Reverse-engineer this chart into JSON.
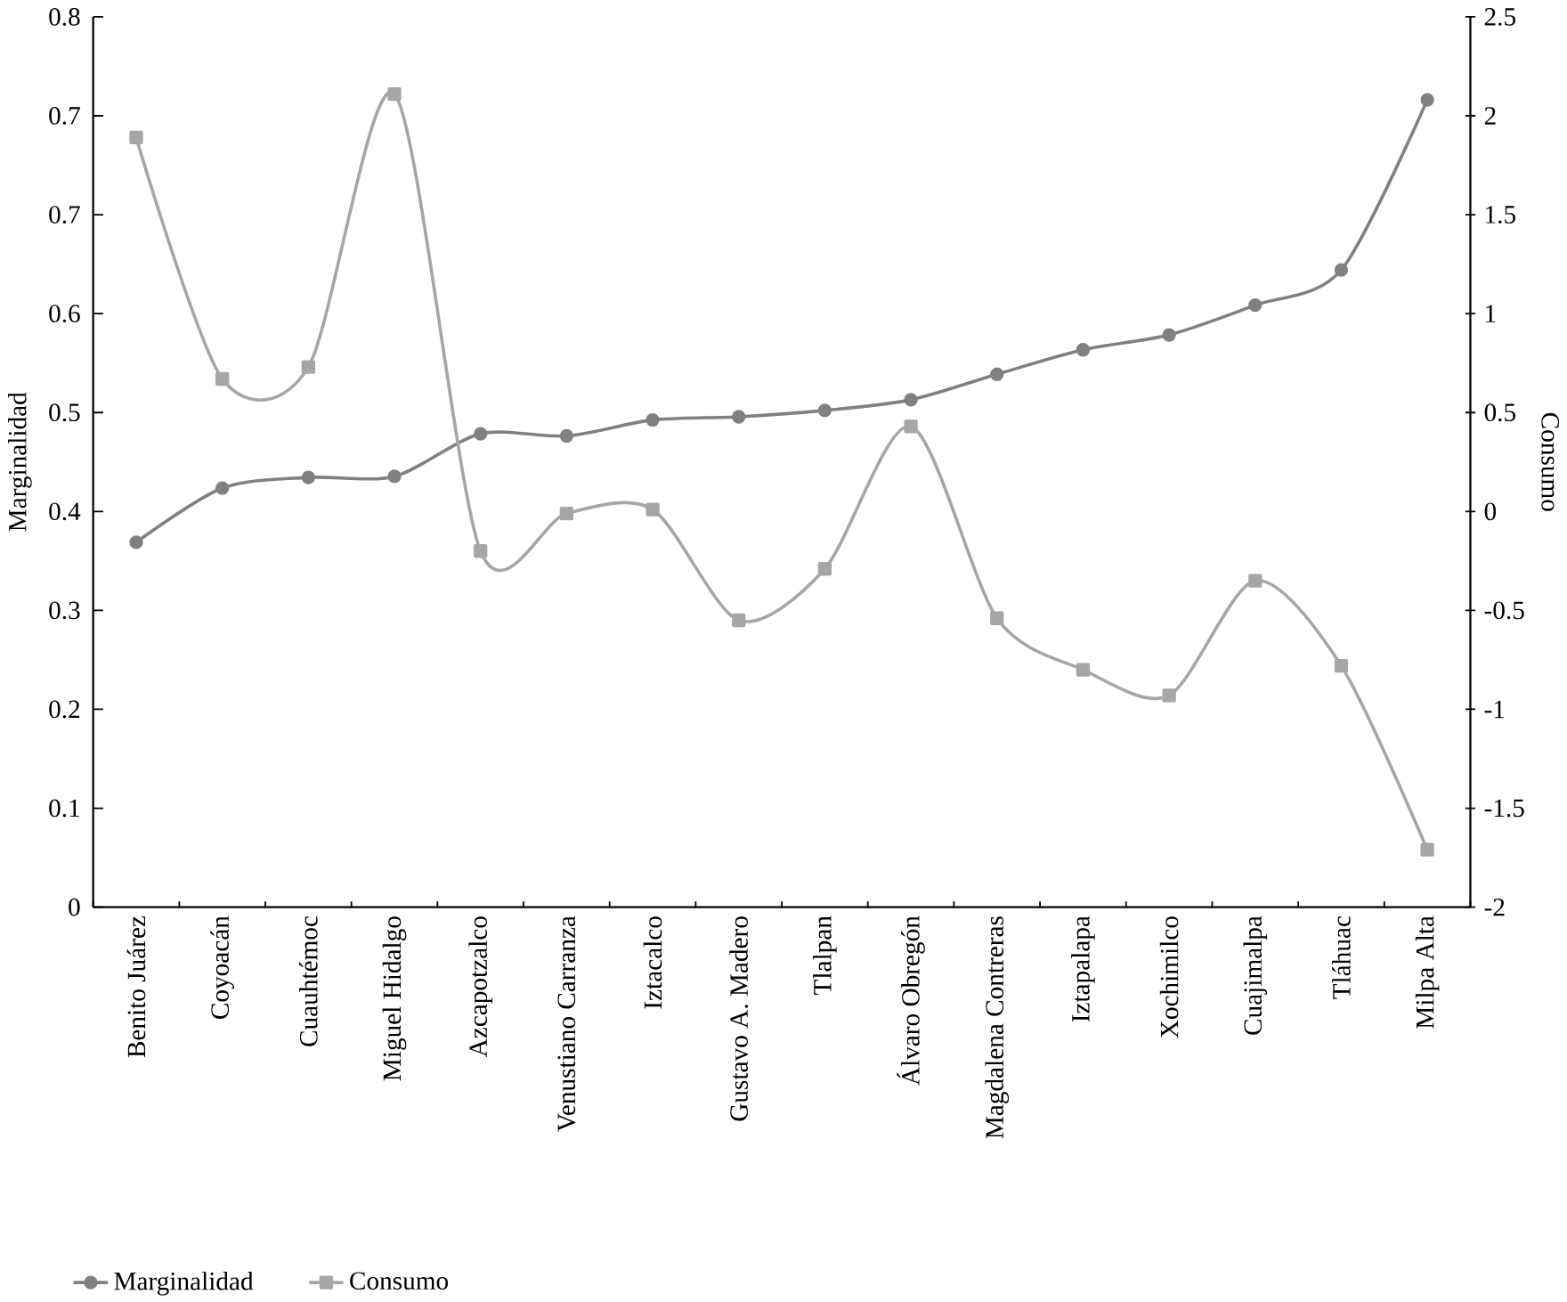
{
  "chart_data": {
    "type": "line",
    "xlabel": null,
    "ylabel": "Marginalidad",
    "y2label": "Consumo",
    "categories": [
      "Benito Juárez",
      "Coyoacán",
      "Cuauhtémoc",
      "Miguel Hidalgo",
      "Azcapotzalco",
      "Venustiano Carranza",
      "Iztacalco",
      "Gustavo A. Madero",
      "Tlalpan",
      "Álvaro Obregón",
      "Magdalena Contreras",
      "Iztapalapa",
      "Xochimilco",
      "Cuajimalpa",
      "Tláhuac",
      "Milpa Alta"
    ],
    "series": [
      {
        "name": "Marginalidad",
        "color": "#808080",
        "marker": "circle",
        "values": [
          0.343,
          0.394,
          0.404,
          0.405,
          0.445,
          0.443,
          0.458,
          0.461,
          0.467,
          0.477,
          0.501,
          0.524,
          0.538,
          0.566,
          0.599,
          0.759
        ]
      },
      {
        "name": "Consumo",
        "color": "#a6a6a6",
        "marker": "square",
        "axis": "y2",
        "values": [
          1.89,
          0.67,
          0.73,
          2.11,
          -0.2,
          -0.01,
          0.01,
          -0.55,
          -0.29,
          0.43,
          -0.54,
          -0.8,
          -0.93,
          -0.35,
          -0.78,
          -1.71
        ]
      }
    ],
    "ylim": [
      0,
      0.837
    ],
    "yticks": [
      {
        "value": 0,
        "label": "0"
      },
      {
        "value": 0.093,
        "label": "0.1"
      },
      {
        "value": 0.186,
        "label": "0.2"
      },
      {
        "value": 0.279,
        "label": "0.3"
      },
      {
        "value": 0.372,
        "label": "0.4"
      },
      {
        "value": 0.465,
        "label": "0.5"
      },
      {
        "value": 0.558,
        "label": "0.6"
      },
      {
        "value": 0.651,
        "label": "0.7"
      },
      {
        "value": 0.744,
        "label": "0.7"
      },
      {
        "value": 0.837,
        "label": "0.8"
      }
    ],
    "y2lim": [
      -2,
      2.5
    ],
    "y2ticks": [
      -2,
      -1.5,
      -1,
      -0.5,
      0,
      0.5,
      1,
      1.5,
      2,
      2.5
    ],
    "legend": "bottom left",
    "grid": false,
    "line_style": "solid"
  }
}
